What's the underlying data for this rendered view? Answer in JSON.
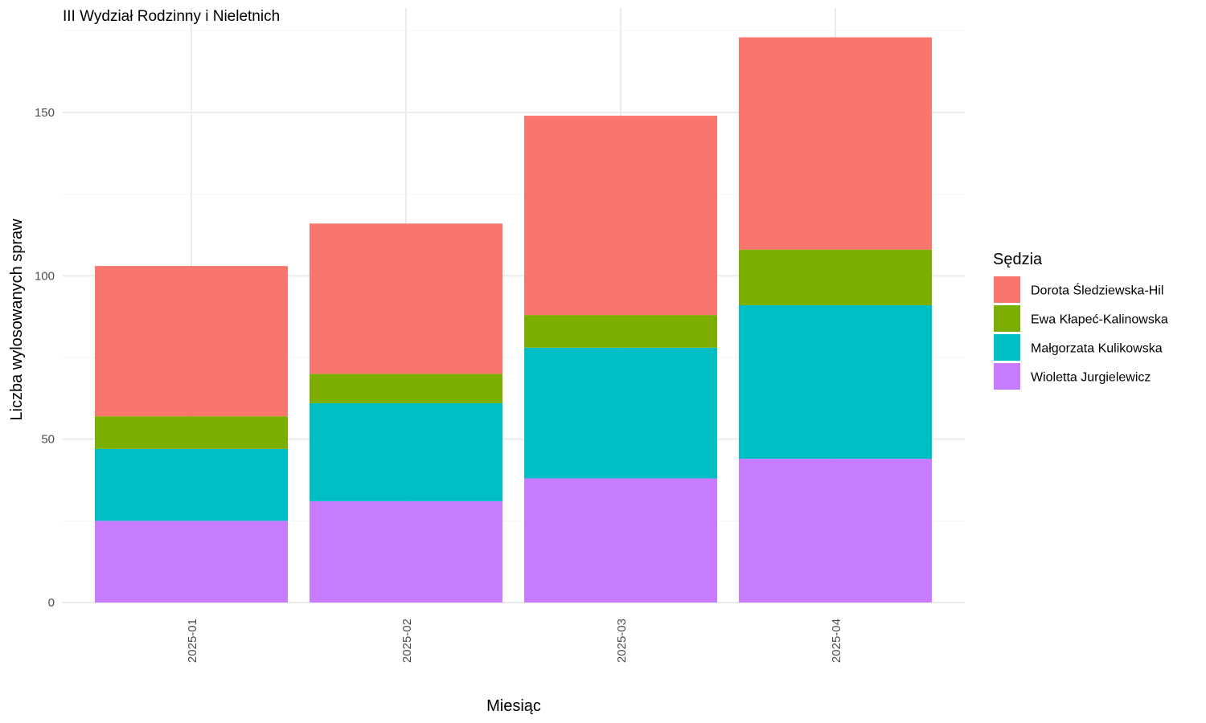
{
  "chart_data": {
    "type": "bar",
    "stacked": true,
    "title": "III Wydział Rodzinny i Nieletnich",
    "xlabel": "Miesiąc",
    "ylabel": "Liczba wylosowanych spraw",
    "categories": [
      "2025-01",
      "2025-02",
      "2025-03",
      "2025-04"
    ],
    "ylim": [
      0,
      180
    ],
    "yticks": [
      0,
      50,
      100,
      150
    ],
    "grid": true,
    "legend": {
      "title": "Sędzia",
      "position": "right"
    },
    "series": [
      {
        "name": "Dorota Śledziewska-Hil",
        "color": "#F8766D",
        "values": [
          46,
          46,
          61,
          65
        ]
      },
      {
        "name": "Ewa Kłapeć-Kalinowska",
        "color": "#7CAE00",
        "values": [
          10,
          9,
          10,
          17
        ]
      },
      {
        "name": "Małgorzata Kulikowska",
        "color": "#00BFC4",
        "values": [
          22,
          30,
          40,
          47
        ]
      },
      {
        "name": "Wioletta Jurgielewicz",
        "color": "#C77CFF",
        "values": [
          25,
          31,
          38,
          44
        ]
      }
    ]
  }
}
